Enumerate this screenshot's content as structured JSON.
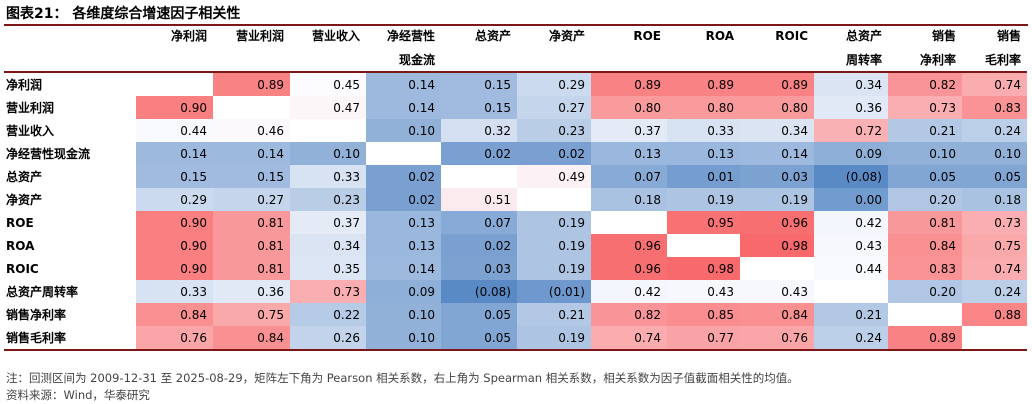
{
  "title": "图表21：  各维度综合增速因子相关性",
  "header_line1": [
    "净利润",
    "营业利润",
    "营业收入",
    "净经营性",
    "总资产",
    "净资产",
    "ROE",
    "ROA",
    "ROIC",
    "总资产",
    "销售",
    "销售"
  ],
  "header_line2": [
    "",
    "",
    "",
    "现金流",
    "",
    "",
    "",
    "",
    "",
    "周转率",
    "净利率",
    "毛利率"
  ],
  "rows": [
    {
      "label": "净利润",
      "values": [
        "",
        "0.89",
        "0.45",
        "0.14",
        "0.15",
        "0.29",
        "0.89",
        "0.89",
        "0.89",
        "0.34",
        "0.82",
        "0.74"
      ]
    },
    {
      "label": "营业利润",
      "values": [
        "0.90",
        "",
        "0.47",
        "0.14",
        "0.15",
        "0.27",
        "0.80",
        "0.80",
        "0.80",
        "0.36",
        "0.73",
        "0.83"
      ]
    },
    {
      "label": "营业收入",
      "values": [
        "0.44",
        "0.46",
        "",
        "0.10",
        "0.32",
        "0.23",
        "0.37",
        "0.33",
        "0.34",
        "0.72",
        "0.21",
        "0.24"
      ]
    },
    {
      "label": "净经营性现金流",
      "values": [
        "0.14",
        "0.14",
        "0.10",
        "",
        "0.02",
        "0.02",
        "0.13",
        "0.13",
        "0.14",
        "0.09",
        "0.10",
        "0.10"
      ]
    },
    {
      "label": "总资产",
      "values": [
        "0.15",
        "0.15",
        "0.33",
        "0.02",
        "",
        "0.49",
        "0.07",
        "0.01",
        "0.03",
        "(0.08)",
        "0.05",
        "0.05"
      ]
    },
    {
      "label": "净资产",
      "values": [
        "0.29",
        "0.27",
        "0.23",
        "0.02",
        "0.51",
        "",
        "0.18",
        "0.19",
        "0.19",
        "0.00",
        "0.20",
        "0.18"
      ]
    },
    {
      "label": "ROE",
      "values": [
        "0.90",
        "0.81",
        "0.37",
        "0.13",
        "0.07",
        "0.19",
        "",
        "0.95",
        "0.96",
        "0.42",
        "0.81",
        "0.73"
      ]
    },
    {
      "label": "ROA",
      "values": [
        "0.90",
        "0.81",
        "0.34",
        "0.13",
        "0.02",
        "0.19",
        "0.96",
        "",
        "0.98",
        "0.43",
        "0.84",
        "0.75"
      ]
    },
    {
      "label": "ROIC",
      "values": [
        "0.90",
        "0.81",
        "0.35",
        "0.14",
        "0.03",
        "0.19",
        "0.96",
        "0.98",
        "",
        "0.44",
        "0.83",
        "0.74"
      ]
    },
    {
      "label": "总资产周转率",
      "values": [
        "0.33",
        "0.36",
        "0.73",
        "0.09",
        "(0.08)",
        "(0.01)",
        "0.42",
        "0.43",
        "0.43",
        "",
        "0.20",
        "0.24"
      ]
    },
    {
      "label": "销售净利率",
      "values": [
        "0.84",
        "0.75",
        "0.22",
        "0.10",
        "0.05",
        "0.21",
        "0.82",
        "0.85",
        "0.84",
        "0.21",
        "",
        "0.88"
      ]
    },
    {
      "label": "销售毛利率",
      "values": [
        "0.76",
        "0.84",
        "0.26",
        "0.10",
        "0.05",
        "0.19",
        "0.74",
        "0.77",
        "0.76",
        "0.24",
        "0.89",
        ""
      ]
    }
  ],
  "note": "注：回测区间为 2009-12-31 至 2025-08-29，矩阵左下角为 Pearson 相关系数，右上角为 Spearman 相关系数，相关系数为因子值截面相关性的均值。",
  "source": "资料来源：Wind，华泰研究",
  "colors": {
    "high": "#f8696b",
    "low": "#5a8ac6",
    "neutral": "#fcfcff",
    "rule": "#7d1717"
  }
}
